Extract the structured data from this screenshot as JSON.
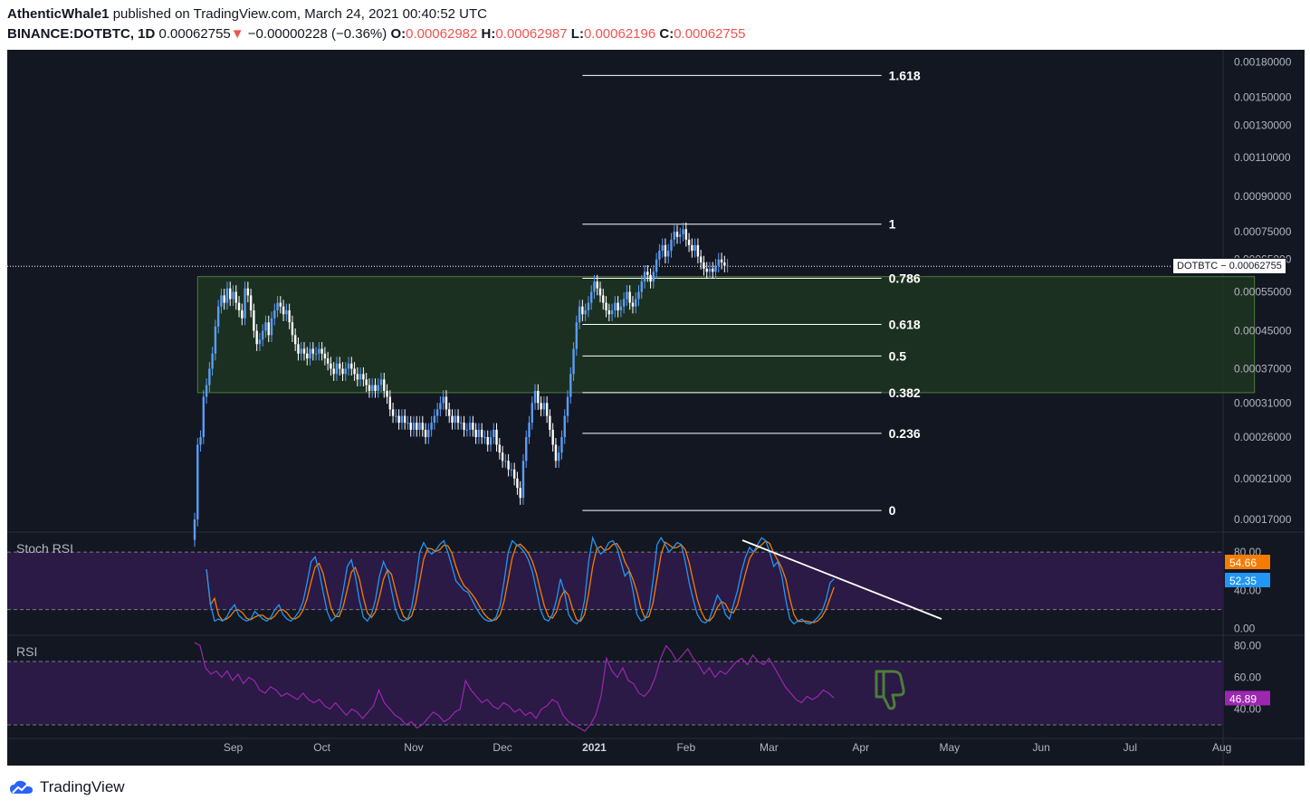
{
  "header": {
    "author": "AthenticWhale1",
    "published_text": "published on TradingView.com, March 24, 2021 00:40:52 UTC",
    "symbol": "BINANCE:DOTBTC, 1D",
    "last": "0.00062755",
    "change_arrow": "▼",
    "change": "−0.00000228 (−0.36%)",
    "open_label": "O:",
    "open": "0.00062982",
    "high_label": "H:",
    "high": "0.00062987",
    "low_label": "L:",
    "low": "0.00062196",
    "close_label": "C:",
    "close": "0.00062755"
  },
  "price_tag": "DOTBTC  −  0.00062755",
  "branding": "TradingView",
  "colors": {
    "background": "#131722",
    "up_candle": "#5b9cf6",
    "down_candle": "#ffffff",
    "green_zone": "#1f3521",
    "panel_purple": "#2a1a45",
    "stoch_k": "#2196f3",
    "stoch_d": "#f57c00",
    "rsi": "#9c27b0",
    "thumbs_down": "#4c7d3b"
  },
  "chart_data": [
    {
      "type": "candlestick",
      "title": "",
      "x_ticks": [
        "Sep",
        "Oct",
        "Nov",
        "Dec",
        "2021",
        "Feb",
        "Mar",
        "Apr",
        "May",
        "Jun",
        "Jul",
        "Aug"
      ],
      "y_ticks": [
        "0.00180000",
        "0.00150000",
        "0.00130000",
        "0.00110000",
        "0.00090000",
        "0.00075000",
        "0.00065000",
        "0.00055000",
        "0.00045000",
        "0.00037000",
        "0.00031000",
        "0.00026000",
        "0.00021000",
        "0.00017000"
      ],
      "y_scale": "log",
      "ylim": [
        0.00016,
        0.0019
      ],
      "close_series": {
        "start": "2020-08-19",
        "closes": [
          0.00017,
          0.00025,
          0.00026,
          0.00032,
          0.00034,
          0.00037,
          0.0004,
          0.00046,
          0.00051,
          0.00054,
          0.00052,
          0.00056,
          0.00053,
          0.00055,
          0.00052,
          0.0005,
          0.00048,
          0.00056,
          0.00054,
          0.0005,
          0.00045,
          0.00042,
          0.00043,
          0.00045,
          0.00047,
          0.00044,
          0.00048,
          0.0005,
          0.00052,
          0.00051,
          0.00049,
          0.0005,
          0.00047,
          0.00044,
          0.00042,
          0.0004,
          0.00041,
          0.0004,
          0.00039,
          0.00041,
          0.0004,
          0.0004,
          0.00041,
          0.0004,
          0.00039,
          0.00038,
          0.00037,
          0.00036,
          0.00038,
          0.00037,
          0.00036,
          0.00037,
          0.00038,
          0.00037,
          0.00036,
          0.00035,
          0.00036,
          0.00035,
          0.00034,
          0.00033,
          0.00034,
          0.00033,
          0.00034,
          0.00035,
          0.00033,
          0.00032,
          0.0003,
          0.00029,
          0.00029,
          0.00028,
          0.00029,
          0.00028,
          0.00028,
          0.00027,
          0.00028,
          0.00027,
          0.00028,
          0.00027,
          0.00026,
          0.00027,
          0.00028,
          0.00029,
          0.0003,
          0.00031,
          0.00032,
          0.0003,
          0.00029,
          0.00028,
          0.00029,
          0.00028,
          0.00028,
          0.00027,
          0.00027,
          0.00028,
          0.00027,
          0.00026,
          0.00027,
          0.00026,
          0.00026,
          0.00025,
          0.00026,
          0.00027,
          0.00025,
          0.00024,
          0.00023,
          0.00023,
          0.00022,
          0.00022,
          0.00021,
          0.0002,
          0.00019,
          0.00023,
          0.00026,
          0.00028,
          0.00031,
          0.00033,
          0.00031,
          0.0003,
          0.00031,
          0.00029,
          0.00027,
          0.00025,
          0.00023,
          0.00024,
          0.00026,
          0.00029,
          0.00032,
          0.00036,
          0.00041,
          0.00047,
          0.00051,
          0.00049,
          0.0005,
          0.00052,
          0.00055,
          0.00058,
          0.00056,
          0.00054,
          0.00052,
          0.0005,
          0.00049,
          0.0005,
          0.00052,
          0.0005,
          0.00051,
          0.00053,
          0.00055,
          0.00052,
          0.00051,
          0.00053,
          0.00055,
          0.00058,
          0.00061,
          0.0006,
          0.00058,
          0.00061,
          0.00065,
          0.00068,
          0.0007,
          0.00066,
          0.00068,
          0.00072,
          0.00075,
          0.00073,
          0.00074,
          0.00076,
          0.00072,
          0.0007,
          0.00068,
          0.0007,
          0.00066,
          0.00064,
          0.00062,
          0.00061,
          0.00062,
          0.00061,
          0.00063,
          0.00065,
          0.00064,
          0.00063,
          0.00063
        ]
      },
      "green_zone": {
        "from": "2020-08-20",
        "to": "2021-08-12",
        "price_top": 0.000595,
        "price_bottom": 0.000327
      },
      "fib_levels": [
        {
          "label": "1.618",
          "price": 0.00168
        },
        {
          "label": "1",
          "price": 0.00078
        },
        {
          "label": "0.786",
          "price": 0.00059
        },
        {
          "label": "0.618",
          "price": 0.000465
        },
        {
          "label": "0.5",
          "price": 0.000395
        },
        {
          "label": "0.382",
          "price": 0.000327
        },
        {
          "label": "0.236",
          "price": 0.000265
        },
        {
          "label": "0",
          "price": 0.000178
        }
      ],
      "fib_from": "2020-12-28",
      "fib_to": "2021-04-08",
      "last_price": 0.00062755
    },
    {
      "type": "line",
      "title": "Stoch RSI",
      "y_ticks": [
        "80.00",
        "40.00",
        "0.00"
      ],
      "ylim": [
        -5,
        100
      ],
      "bands": [
        80,
        20
      ],
      "labels": {
        "d": "54.66",
        "k": "52.35"
      },
      "series": [
        {
          "values": [
            62,
            25,
            8,
            10,
            8,
            12,
            20,
            25,
            14,
            10,
            8,
            10,
            18,
            14,
            10,
            8,
            12,
            20,
            25,
            15,
            10,
            8,
            12,
            18,
            28,
            48,
            70,
            75,
            60,
            38,
            18,
            8,
            12,
            18,
            40,
            65,
            72,
            55,
            30,
            12,
            8,
            15,
            30,
            55,
            70,
            60,
            40,
            20,
            10,
            8,
            10,
            22,
            48,
            80,
            90,
            82,
            78,
            82,
            88,
            92,
            80,
            65,
            50,
            45,
            40,
            38,
            30,
            22,
            15,
            10,
            8,
            8,
            12,
            25,
            50,
            80,
            92,
            88,
            85,
            80,
            72,
            60,
            40,
            20,
            10,
            8,
            15,
            30,
            52,
            38,
            15,
            8,
            5,
            10,
            30,
            70,
            95,
            85,
            78,
            82,
            90,
            92,
            85,
            70,
            55,
            60,
            40,
            15,
            8,
            10,
            20,
            50,
            88,
            95,
            88,
            80,
            85,
            90,
            88,
            70,
            48,
            30,
            15,
            8,
            6,
            10,
            22,
            35,
            28,
            15,
            10,
            25,
            40,
            60,
            75,
            85,
            80,
            88,
            95,
            92,
            80,
            65,
            70,
            55,
            30,
            10,
            5,
            8,
            10,
            6,
            5,
            8,
            12,
            18,
            30,
            48,
            52
          ]
        }
      ],
      "annotation_trendline": "downward white line from Stoch RSI peak"
    },
    {
      "type": "line",
      "title": "RSI",
      "y_ticks": [
        "80.00",
        "60.00",
        "40.00"
      ],
      "ylim": [
        22,
        86
      ],
      "bands": [
        70,
        30
      ],
      "labels": {
        "rsi": "46.89"
      },
      "series": [
        {
          "values": [
            82,
            80,
            66,
            62,
            64,
            60,
            64,
            58,
            62,
            56,
            60,
            58,
            52,
            50,
            54,
            52,
            48,
            50,
            48,
            46,
            50,
            46,
            44,
            46,
            42,
            40,
            44,
            40,
            36,
            40,
            38,
            34,
            38,
            42,
            52,
            44,
            40,
            36,
            34,
            30,
            32,
            28,
            30,
            34,
            38,
            36,
            32,
            34,
            38,
            40,
            58,
            52,
            48,
            44,
            46,
            42,
            40,
            44,
            42,
            38,
            40,
            36,
            38,
            34,
            40,
            42,
            46,
            44,
            36,
            32,
            30,
            28,
            26,
            30,
            36,
            48,
            72,
            64,
            60,
            66,
            58,
            56,
            50,
            48,
            52,
            60,
            72,
            80,
            76,
            70,
            74,
            78,
            72,
            68,
            62,
            66,
            60,
            64,
            62,
            66,
            70,
            72,
            68,
            74,
            70,
            68,
            72,
            66,
            60,
            54,
            50,
            46,
            44,
            48,
            46,
            48,
            52,
            50,
            47
          ]
        }
      ]
    }
  ]
}
